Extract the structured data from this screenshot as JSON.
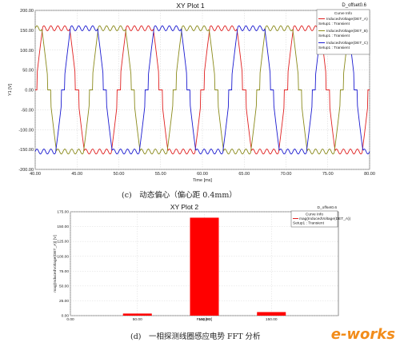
{
  "chart_data": [
    {
      "type": "line",
      "title": "XY Plot 1",
      "annotation": "D_offset0.6",
      "xlabel": "Time [ms]",
      "ylabel": "Y1 [V]",
      "xlim": [
        40,
        80
      ],
      "ylim": [
        -200,
        200
      ],
      "xticks": [
        "40.00",
        "45.00",
        "50.00",
        "55.00",
        "60.00",
        "65.00",
        "70.00",
        "75.00",
        "80.00"
      ],
      "yticks": [
        "200.00",
        "150.00",
        "100.00",
        "50.00",
        "0.00",
        "-50.00",
        "-100.00",
        "-150.00",
        "-200.00"
      ],
      "grid": true,
      "legend": {
        "title": "Curve Info",
        "entries": [
          {
            "name": "InducedVoltage(DET_A)",
            "setup": "Setup1 : Transient",
            "color": "#e02020"
          },
          {
            "name": "InducedVoltage(DET_B)",
            "setup": "Setup1 : Transient",
            "color": "#8a8a1a"
          },
          {
            "name": "InducedVoltage(DET_C)",
            "setup": "Setup1 : Transient",
            "color": "#1a1ad0"
          }
        ]
      },
      "series": [
        {
          "name": "InducedVoltage(DET_A)",
          "color": "#e02020",
          "amplitude": 155,
          "period_ms": 10,
          "phase_deg": 0
        },
        {
          "name": "InducedVoltage(DET_B)",
          "color": "#8a8a1a",
          "amplitude": 155,
          "period_ms": 10,
          "phase_deg": 120
        },
        {
          "name": "InducedVoltage(DET_C)",
          "color": "#1a1ad0",
          "amplitude": 155,
          "period_ms": 10,
          "phase_deg": 240
        }
      ],
      "caption": "(c)　动态偏心（偏心距 0.4mm）"
    },
    {
      "type": "bar",
      "title": "XY Plot 2",
      "annotation": "D_offset0.6",
      "xlabel": "Freq [Hz]",
      "ylabel": "mag(InducedVoltage(DET_A)) [V]",
      "xlim": [
        0,
        200
      ],
      "ylim": [
        0,
        175
      ],
      "xticks": [
        "0.00",
        "50.00",
        "100.00",
        "150.00"
      ],
      "yticks": [
        "175.00",
        "150.00",
        "125.00",
        "100.00",
        "75.00",
        "50.00",
        "25.00",
        "0.00"
      ],
      "legend": {
        "title": "Curve Info",
        "entries": [
          {
            "name": "mag(InducedVoltage(DET_A))",
            "setup": "Setup1 : Transient",
            "color": "#e02020"
          }
        ]
      },
      "bars": [
        {
          "x": 50,
          "value": 3.5
        },
        {
          "x": 100,
          "value": 165
        },
        {
          "x": 150,
          "value": 6
        }
      ],
      "bar_color": "#ff0000",
      "caption": "(d)　一相探测线圈感应电势 FFT 分析"
    }
  ],
  "logo": {
    "text": "e-works"
  }
}
